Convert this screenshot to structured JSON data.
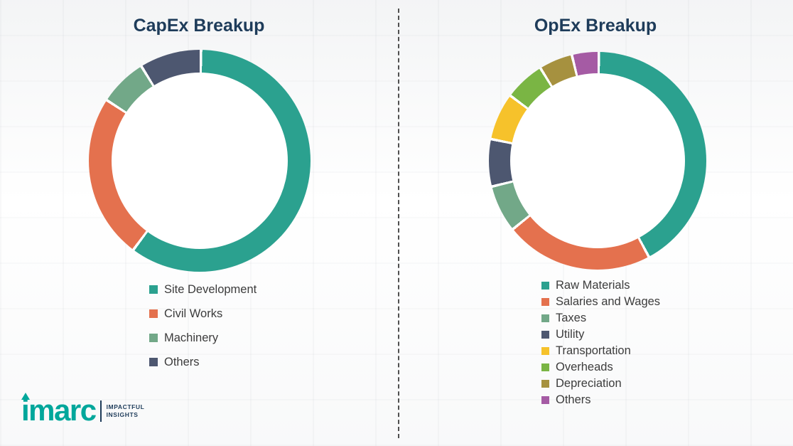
{
  "charts": [
    {
      "title": "CapEx Breakup"
    },
    {
      "title": "OpEx Breakup"
    }
  ],
  "chart_data": [
    {
      "type": "pie",
      "subtype": "donut",
      "title": "CapEx Breakup",
      "labels": [
        "Site Development",
        "Civil Works",
        "Machinery",
        "Others"
      ],
      "values": [
        60,
        24,
        7,
        9
      ],
      "colors": [
        "#2BA18F",
        "#E4714E",
        "#72A888",
        "#4D5770"
      ],
      "legend_position": "bottom",
      "start_angle_deg": 0,
      "direction": "clockwise"
    },
    {
      "type": "pie",
      "subtype": "donut",
      "title": "OpEx Breakup",
      "labels": [
        "Raw Materials",
        "Salaries and Wages",
        "Taxes",
        "Utility",
        "Transportation",
        "Overheads",
        "Depreciation",
        "Others"
      ],
      "values": [
        42,
        22,
        7,
        7,
        7,
        6,
        5,
        4
      ],
      "colors": [
        "#2BA18F",
        "#E4714E",
        "#72A888",
        "#4D5770",
        "#F6C22B",
        "#7AB544",
        "#A6913F",
        "#A55BA4"
      ],
      "legend_position": "bottom",
      "start_angle_deg": 0,
      "direction": "clockwise"
    }
  ],
  "logo": {
    "brand": "imarc",
    "tagline_line1": "IMPACTFUL",
    "tagline_line2": "INSIGHTS",
    "brand_color": "#00A79B"
  }
}
